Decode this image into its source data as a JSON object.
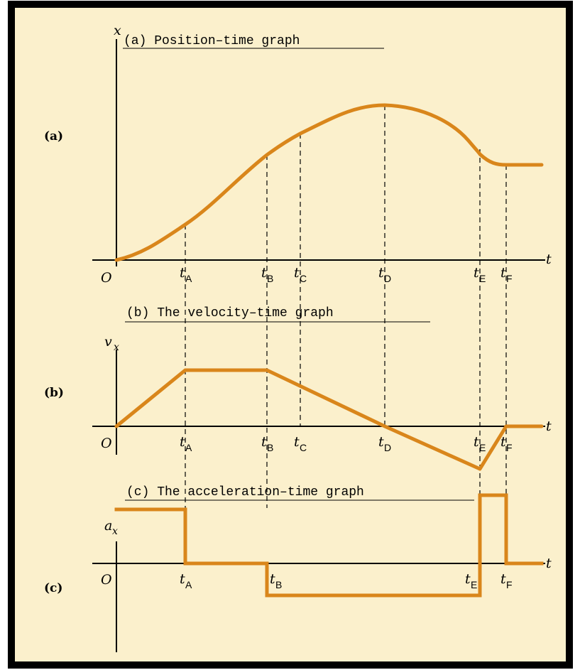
{
  "colors": {
    "background": "#fbf0cc",
    "curve": "#d9861b",
    "border": "#000000"
  },
  "panels": {
    "a": {
      "side_label": "(a)",
      "title": "(a) Position–time graph",
      "y_axis_label": "x",
      "x_axis_label": "t",
      "origin_label": "O",
      "ticks": [
        {
          "base": "t",
          "sub": "A"
        },
        {
          "base": "t",
          "sub": "B"
        },
        {
          "base": "t",
          "sub": "C"
        },
        {
          "base": "t",
          "sub": "D"
        },
        {
          "base": "t",
          "sub": "E"
        },
        {
          "base": "t",
          "sub": "F"
        }
      ]
    },
    "b": {
      "side_label": "(b)",
      "title": "(b) The velocity–time graph",
      "y_axis_label": "v",
      "y_axis_sub": "x",
      "x_axis_label": "t",
      "origin_label": "O",
      "ticks": [
        {
          "base": "t",
          "sub": "A"
        },
        {
          "base": "t",
          "sub": "B"
        },
        {
          "base": "t",
          "sub": "C"
        },
        {
          "base": "t",
          "sub": "D"
        },
        {
          "base": "t",
          "sub": "E"
        },
        {
          "base": "t",
          "sub": "F"
        }
      ]
    },
    "c": {
      "side_label": "(c)",
      "title": "(c) The acceleration–time graph",
      "y_axis_label": "a",
      "y_axis_sub": "x",
      "x_axis_label": "t",
      "origin_label": "O",
      "ticks": [
        {
          "base": "t",
          "sub": "A"
        },
        {
          "base": "t",
          "sub": "B"
        },
        {
          "base": "t",
          "sub": "E"
        },
        {
          "base": "t",
          "sub": "F"
        }
      ]
    }
  }
}
